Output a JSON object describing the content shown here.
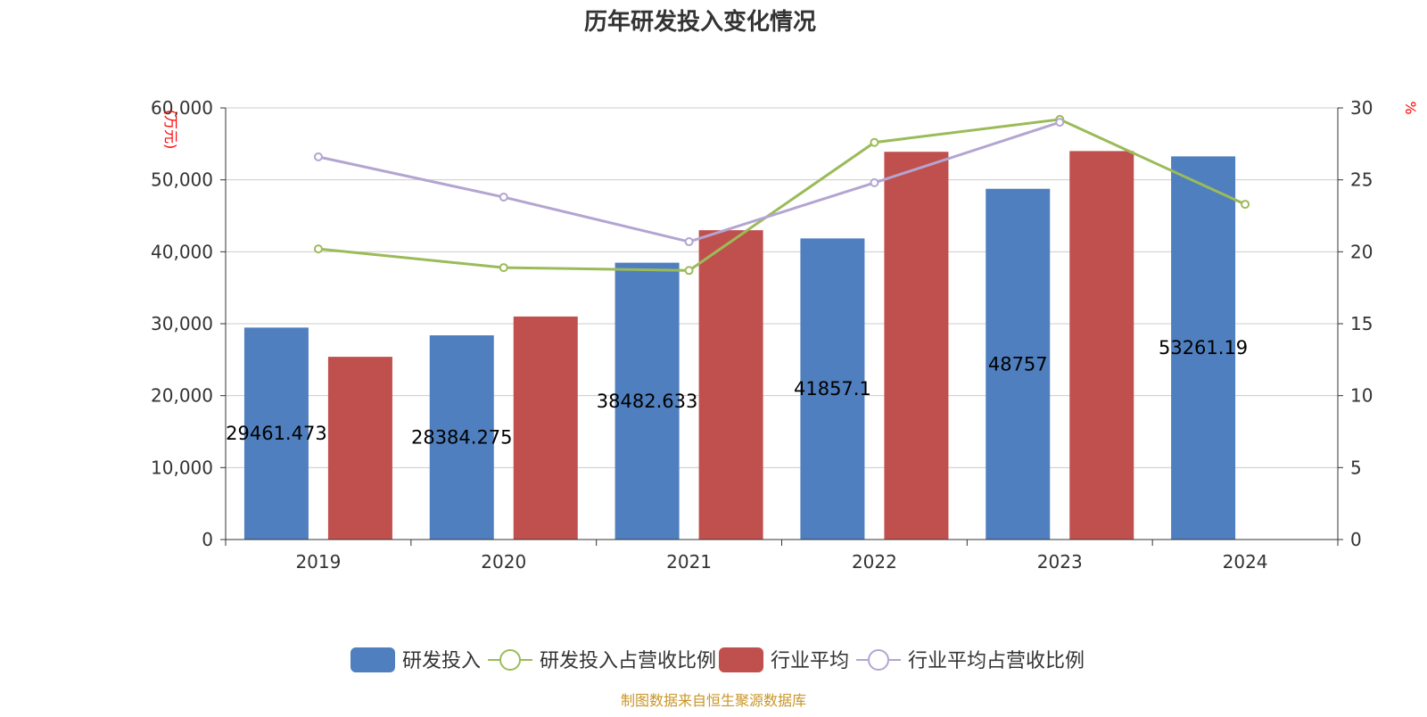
{
  "chart_data": {
    "type": "bar",
    "title": "历年研发投入变化情况",
    "y_left_unit": "(万元)",
    "y_right_unit": "%",
    "ylim_left": [
      0,
      60000
    ],
    "ylim_right": [
      0,
      30
    ],
    "left_ticks": [
      "0",
      "10,000",
      "20,000",
      "30,000",
      "40,000",
      "50,000",
      "60,000"
    ],
    "right_ticks": [
      "0",
      "5",
      "10",
      "15",
      "20",
      "25",
      "30"
    ],
    "categories": [
      "2019",
      "2020",
      "2021",
      "2022",
      "2023",
      "2024"
    ],
    "series": [
      {
        "name": "研发投入",
        "kind": "bar",
        "axis": "left",
        "color": "#4f7fbe",
        "values": [
          29461.473,
          28384.275,
          38482.633,
          41857.1,
          48757,
          53261.19
        ],
        "labels": [
          "29461.473",
          "28384.275",
          "38482.633",
          "41857.1",
          "48757",
          "53261.19"
        ]
      },
      {
        "name": "研发投入占营收比例",
        "kind": "line",
        "axis": "right",
        "color": "#9bbb59",
        "values": [
          20.2,
          18.9,
          18.7,
          27.6,
          29.2,
          23.3
        ]
      },
      {
        "name": "行业平均",
        "kind": "bar",
        "axis": "left",
        "color": "#c0504d",
        "values": [
          25400,
          31000,
          43000,
          53900,
          54000,
          null
        ]
      },
      {
        "name": "行业平均占营收比例",
        "kind": "line",
        "axis": "right",
        "color": "#b3a5d1",
        "values": [
          26.6,
          23.8,
          20.7,
          24.8,
          29.0,
          null
        ]
      }
    ],
    "legend_position": "bottom-center",
    "source": "制图数据来自恒生聚源数据库"
  }
}
